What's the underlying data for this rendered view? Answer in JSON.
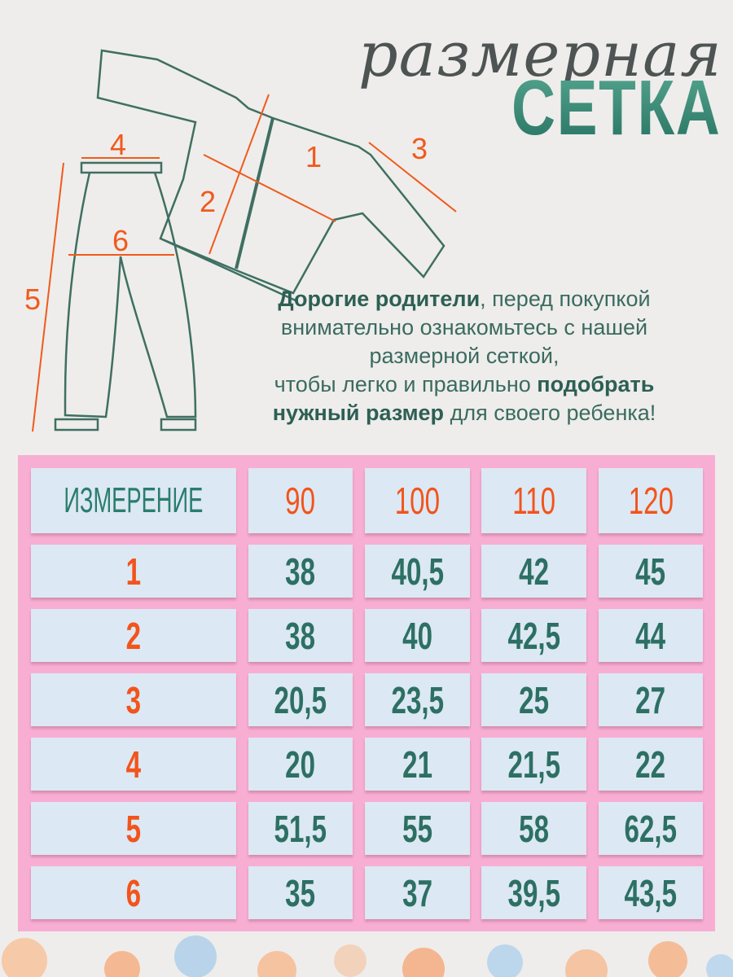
{
  "header": {
    "title_line1": "размерная",
    "title_line2": "СЕТКА"
  },
  "diagram": {
    "labels": [
      "1",
      "2",
      "3",
      "4",
      "5",
      "6"
    ]
  },
  "intro": {
    "l1_bold": "Дорогие родители",
    "l1_rest": ", перед покупкой",
    "l2": "внимательно ознакомьтесь с нашей",
    "l3": "размерной сеткой,",
    "l4_pre": "чтобы легко и правильно ",
    "l4_bold": "подобрать",
    "l5_bold": "нужный размер",
    "l5_rest": " для своего ребенка!"
  },
  "colors": {
    "accent_orange": "#f2541b",
    "teal": "#2a7d6c",
    "table_bg": "#f8aed3",
    "cell_bg": "#dce8f4"
  },
  "table": {
    "columns": [
      "ИЗМЕРЕНИЕ",
      "90",
      "100",
      "110",
      "120"
    ],
    "rows": [
      [
        "1",
        "38",
        "40,5",
        "42",
        "45"
      ],
      [
        "2",
        "38",
        "40",
        "42,5",
        "44"
      ],
      [
        "3",
        "20,5",
        "23,5",
        "25",
        "27"
      ],
      [
        "4",
        "20",
        "21",
        "21,5",
        "22"
      ],
      [
        "5",
        "51,5",
        "55",
        "58",
        "62,5"
      ],
      [
        "6",
        "35",
        "37",
        "39,5",
        "43,5"
      ]
    ]
  }
}
